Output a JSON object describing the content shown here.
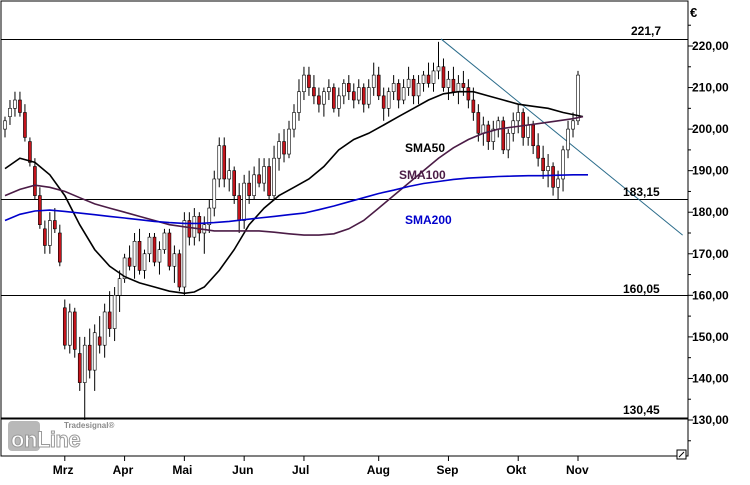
{
  "chart_data": {
    "type": "candlestick",
    "currency_symbol": "€",
    "ylim": [
      120,
      228
    ],
    "y_ticks": [
      "220,00",
      "210,00",
      "200,00",
      "190,00",
      "180,00",
      "170,00",
      "160,00",
      "150,00",
      "140,00",
      "130,00"
    ],
    "y_tick_values": [
      220,
      210,
      200,
      190,
      180,
      170,
      160,
      150,
      140,
      130
    ],
    "x_tick_labels": [
      "Mrz",
      "Apr",
      "Mai",
      "Jun",
      "Jul",
      "Aug",
      "Sep",
      "Okt",
      "Nov"
    ],
    "x_tick_days": [
      12,
      24,
      36,
      48,
      60,
      75,
      89,
      103,
      115
    ],
    "horizontal_levels": [
      {
        "label": "221,7",
        "value": 221.7
      },
      {
        "label": "183,15",
        "value": 183.15
      },
      {
        "label": "160,05",
        "value": 160.05
      },
      {
        "label": "130,45",
        "value": 130.45
      }
    ],
    "trendline": {
      "start": [
        87.5,
        221.7
      ],
      "end": [
        136,
        174.5
      ]
    },
    "moving_averages": [
      {
        "name": "SMA50",
        "color": "#000000",
        "label_day": 81,
        "label_value": 193.5,
        "points": [
          [
            0,
            190.5
          ],
          [
            3,
            193
          ],
          [
            6,
            192
          ],
          [
            9,
            189
          ],
          [
            12,
            184
          ],
          [
            15,
            177
          ],
          [
            18,
            171
          ],
          [
            21,
            167
          ],
          [
            24,
            164.5
          ],
          [
            27,
            163
          ],
          [
            30,
            162
          ],
          [
            33,
            161
          ],
          [
            36,
            160.5
          ],
          [
            38,
            160.8
          ],
          [
            40,
            162
          ],
          [
            43,
            166
          ],
          [
            46,
            171
          ],
          [
            49,
            177
          ],
          [
            52,
            181
          ],
          [
            55,
            184
          ],
          [
            58,
            186
          ],
          [
            61,
            188
          ],
          [
            64,
            191
          ],
          [
            67,
            195
          ],
          [
            70,
            197.5
          ],
          [
            73,
            199
          ],
          [
            76,
            201
          ],
          [
            79,
            203
          ],
          [
            82,
            205
          ],
          [
            85,
            207
          ],
          [
            88,
            208.5
          ],
          [
            91,
            209
          ],
          [
            94,
            209
          ],
          [
            97,
            208
          ],
          [
            100,
            207
          ],
          [
            103,
            206
          ],
          [
            106,
            205.5
          ],
          [
            109,
            205
          ],
          [
            112,
            204
          ],
          [
            116,
            203
          ]
        ]
      },
      {
        "name": "SMA100",
        "color": "#4b1c46",
        "label_day": 79,
        "label_value": 187.3,
        "points": [
          [
            0,
            184
          ],
          [
            3,
            185.5
          ],
          [
            6,
            186.5
          ],
          [
            9,
            186
          ],
          [
            12,
            185
          ],
          [
            15,
            183.5
          ],
          [
            18,
            182
          ],
          [
            21,
            181
          ],
          [
            24,
            180
          ],
          [
            27,
            179
          ],
          [
            30,
            178
          ],
          [
            33,
            177
          ],
          [
            36,
            176.5
          ],
          [
            39,
            176
          ],
          [
            42,
            175.5
          ],
          [
            45,
            175.5
          ],
          [
            48,
            175.5
          ],
          [
            51,
            175.5
          ],
          [
            54,
            175.2
          ],
          [
            57,
            174.8
          ],
          [
            60,
            174.5
          ],
          [
            63,
            174.5
          ],
          [
            66,
            174.8
          ],
          [
            69,
            176
          ],
          [
            72,
            178
          ],
          [
            75,
            181
          ],
          [
            78,
            184
          ],
          [
            81,
            187
          ],
          [
            84,
            190
          ],
          [
            87,
            193
          ],
          [
            90,
            195.5
          ],
          [
            93,
            197.5
          ],
          [
            96,
            199
          ],
          [
            99,
            200
          ],
          [
            102,
            200.5
          ],
          [
            105,
            201
          ],
          [
            108,
            201.5
          ],
          [
            111,
            202
          ],
          [
            114,
            202.5
          ],
          [
            116,
            203
          ]
        ]
      },
      {
        "name": "SMA200",
        "color": "#0000cc",
        "label_day": 81,
        "label_value": 178.4,
        "points": [
          [
            0,
            178
          ],
          [
            3,
            179.5
          ],
          [
            6,
            180.3
          ],
          [
            9,
            180.5
          ],
          [
            12,
            180.2
          ],
          [
            15,
            179.8
          ],
          [
            18,
            179.4
          ],
          [
            21,
            179
          ],
          [
            24,
            178.6
          ],
          [
            27,
            178.2
          ],
          [
            30,
            177.8
          ],
          [
            33,
            177.5
          ],
          [
            36,
            177.3
          ],
          [
            39,
            177.3
          ],
          [
            42,
            177.5
          ],
          [
            45,
            177.8
          ],
          [
            48,
            178.2
          ],
          [
            51,
            178.6
          ],
          [
            54,
            179
          ],
          [
            57,
            179.4
          ],
          [
            60,
            179.8
          ],
          [
            63,
            180.6
          ],
          [
            66,
            181.5
          ],
          [
            69,
            182.5
          ],
          [
            72,
            183.5
          ],
          [
            75,
            184.5
          ],
          [
            78,
            185.3
          ],
          [
            81,
            186.2
          ],
          [
            84,
            186.9
          ],
          [
            87,
            187.4
          ],
          [
            90,
            187.9
          ],
          [
            93,
            188.2
          ],
          [
            96,
            188.4
          ],
          [
            99,
            188.6
          ],
          [
            102,
            188.7
          ],
          [
            105,
            188.8
          ],
          [
            108,
            188.8
          ],
          [
            111,
            188.9
          ],
          [
            114,
            189
          ],
          [
            117,
            189
          ]
        ]
      }
    ],
    "candles": [
      [
        0,
        200,
        203,
        198,
        202
      ],
      [
        1,
        203,
        207,
        201,
        205
      ],
      [
        2,
        205,
        209,
        203,
        207
      ],
      [
        3,
        207,
        209,
        203,
        204
      ],
      [
        4,
        204,
        206,
        197,
        198
      ],
      [
        5,
        197,
        198,
        191,
        192
      ],
      [
        6,
        191,
        193,
        183,
        184
      ],
      [
        7,
        184,
        186,
        176,
        177
      ],
      [
        8,
        176,
        178,
        170,
        172
      ],
      [
        9,
        172,
        180,
        170,
        178
      ],
      [
        10,
        178,
        181,
        175,
        176
      ],
      [
        11,
        175,
        177,
        167,
        168
      ],
      [
        12,
        157,
        159,
        147,
        148
      ],
      [
        13,
        148,
        158,
        146,
        156
      ],
      [
        14,
        156,
        157,
        145,
        147
      ],
      [
        15,
        146,
        150,
        137,
        139
      ],
      [
        16,
        139,
        150,
        130,
        148
      ],
      [
        17,
        148,
        152,
        140,
        142
      ],
      [
        18,
        142,
        153,
        137,
        151
      ],
      [
        19,
        150,
        155,
        146,
        148
      ],
      [
        20,
        148,
        158,
        145,
        156
      ],
      [
        21,
        156,
        161,
        150,
        152
      ],
      [
        22,
        152,
        162,
        149,
        160
      ],
      [
        23,
        160,
        166,
        156,
        164
      ],
      [
        24,
        164,
        170,
        163,
        169
      ],
      [
        25,
        169,
        172,
        166,
        167
      ],
      [
        26,
        167,
        175,
        164,
        173
      ],
      [
        27,
        173,
        176,
        165,
        166
      ],
      [
        28,
        166,
        171,
        164,
        170
      ],
      [
        29,
        170,
        175,
        168,
        174
      ],
      [
        30,
        174,
        175,
        167,
        168
      ],
      [
        31,
        168,
        173,
        165,
        171
      ],
      [
        32,
        171,
        176,
        170,
        175
      ],
      [
        33,
        175,
        176,
        166,
        167
      ],
      [
        34,
        167,
        172,
        163,
        170
      ],
      [
        35,
        170,
        171,
        161,
        162
      ],
      [
        36,
        162,
        180,
        160,
        178
      ],
      [
        37,
        178,
        180,
        172,
        174
      ],
      [
        38,
        174,
        181,
        172,
        179
      ],
      [
        39,
        179,
        180,
        173,
        175
      ],
      [
        40,
        175,
        179,
        170,
        177
      ],
      [
        41,
        177,
        183,
        175,
        181
      ],
      [
        42,
        181,
        190,
        179,
        188
      ],
      [
        43,
        188,
        198,
        186,
        196
      ],
      [
        44,
        196,
        198,
        186,
        188
      ],
      [
        45,
        188,
        193,
        185,
        190
      ],
      [
        46,
        190,
        191,
        182,
        184
      ],
      [
        47,
        184,
        187,
        175,
        178
      ],
      [
        48,
        178,
        189,
        176,
        187
      ],
      [
        49,
        187,
        190,
        182,
        184
      ],
      [
        50,
        184,
        191,
        183,
        189
      ],
      [
        51,
        189,
        193,
        186,
        187
      ],
      [
        52,
        187,
        193,
        185,
        191
      ],
      [
        53,
        191,
        193,
        183,
        184
      ],
      [
        54,
        184,
        196,
        183,
        193
      ],
      [
        55,
        193,
        199,
        190,
        197
      ],
      [
        56,
        197,
        200,
        192,
        194
      ],
      [
        57,
        194,
        202,
        193,
        200
      ],
      [
        58,
        200,
        206,
        198,
        204
      ],
      [
        59,
        204,
        212,
        202,
        209
      ],
      [
        60,
        209,
        215,
        207,
        213
      ],
      [
        61,
        213,
        215,
        208,
        210
      ],
      [
        62,
        210,
        213,
        206,
        208
      ],
      [
        63,
        208,
        210,
        204,
        206
      ],
      [
        64,
        206,
        210,
        203,
        209
      ],
      [
        65,
        209,
        212,
        207,
        210
      ],
      [
        66,
        210,
        211,
        204,
        205
      ],
      [
        67,
        205,
        210,
        203,
        208
      ],
      [
        68,
        208,
        212,
        206,
        211
      ],
      [
        69,
        211,
        213,
        207,
        209
      ],
      [
        70,
        209,
        211,
        205,
        207
      ],
      [
        71,
        207,
        212,
        206,
        210
      ],
      [
        72,
        210,
        211,
        204,
        206
      ],
      [
        73,
        206,
        212,
        205,
        210
      ],
      [
        74,
        210,
        216,
        208,
        213
      ],
      [
        75,
        213,
        215,
        207,
        208
      ],
      [
        76,
        208,
        210,
        202,
        205
      ],
      [
        77,
        205,
        210,
        203,
        209
      ],
      [
        78,
        209,
        213,
        207,
        211
      ],
      [
        79,
        211,
        212,
        205,
        207
      ],
      [
        80,
        207,
        212,
        206,
        210
      ],
      [
        81,
        210,
        215,
        208,
        212
      ],
      [
        82,
        212,
        213,
        206,
        208
      ],
      [
        83,
        208,
        213,
        206,
        211
      ],
      [
        84,
        211,
        214,
        209,
        213
      ],
      [
        85,
        213,
        216,
        210,
        211
      ],
      [
        86,
        211,
        216,
        209,
        214
      ],
      [
        87,
        214,
        221,
        212,
        215
      ],
      [
        88,
        215,
        217,
        209,
        210
      ],
      [
        89,
        210,
        214,
        207,
        212
      ],
      [
        90,
        212,
        215,
        208,
        209
      ],
      [
        91,
        209,
        213,
        206,
        211
      ],
      [
        92,
        211,
        214,
        208,
        210
      ],
      [
        93,
        210,
        212,
        205,
        207
      ],
      [
        94,
        207,
        210,
        202,
        204
      ],
      [
        95,
        204,
        206,
        197,
        199
      ],
      [
        96,
        199,
        203,
        196,
        201
      ],
      [
        97,
        201,
        202,
        195,
        197
      ],
      [
        98,
        197,
        202,
        195,
        200
      ],
      [
        99,
        200,
        203,
        198,
        202
      ],
      [
        100,
        202,
        203,
        194,
        195
      ],
      [
        101,
        195,
        200,
        193,
        199
      ],
      [
        102,
        199,
        204,
        197,
        202
      ],
      [
        103,
        202,
        206,
        199,
        204
      ],
      [
        104,
        204,
        205,
        196,
        198
      ],
      [
        105,
        198,
        203,
        196,
        201
      ],
      [
        106,
        201,
        202,
        194,
        196
      ],
      [
        107,
        196,
        199,
        191,
        193
      ],
      [
        108,
        193,
        196,
        188,
        190
      ],
      [
        109,
        190,
        194,
        186,
        191
      ],
      [
        110,
        191,
        192,
        184,
        186
      ],
      [
        111,
        186,
        190,
        183,
        188
      ],
      [
        112,
        188,
        196,
        185,
        195
      ],
      [
        113,
        195,
        202,
        193,
        200
      ],
      [
        114,
        200,
        204,
        198,
        202
      ],
      [
        115,
        202,
        214,
        201,
        213
      ]
    ]
  },
  "labels": {
    "currency": "€",
    "sma50": "SMA50",
    "sma100": "SMA100",
    "sma200": "SMA200",
    "level_top": "221,7",
    "level_183": "183,15",
    "level_160": "160,05",
    "level_130": "130,45"
  },
  "logo": {
    "brand": "Tradesignal®",
    "word": "onLine"
  }
}
